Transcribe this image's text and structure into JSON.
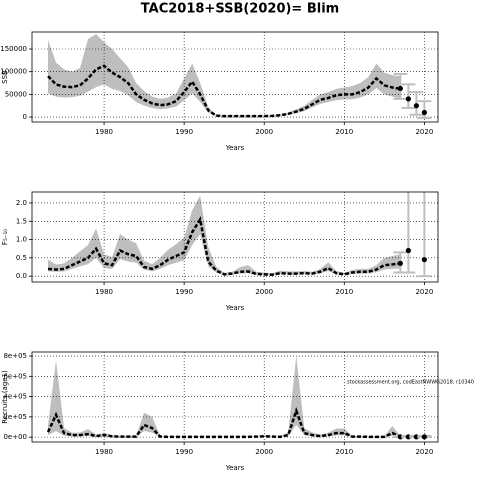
{
  "title": "TAC2018+SSB(2020)= Blim",
  "chart_data": [
    {
      "type": "line",
      "ylabel": "SSB",
      "xlabel": "Years",
      "grid": true,
      "color": "#000000",
      "band_color": "#bebebe",
      "forecast_color": "#bebebe",
      "xlim": [
        1971,
        2021.7
      ],
      "xticks": [
        1980,
        1990,
        2000,
        2010,
        2020
      ],
      "ylim": [
        -11000,
        187500
      ],
      "yticks": [
        0,
        50000,
        100000,
        150000
      ],
      "x": [
        1973,
        1974,
        1975,
        1976,
        1977,
        1978,
        1979,
        1980,
        1981,
        1982,
        1983,
        1984,
        1985,
        1986,
        1987,
        1988,
        1989,
        1990,
        1991,
        1992,
        1993,
        1994,
        1995,
        1996,
        1997,
        1998,
        1999,
        2000,
        2001,
        2002,
        2003,
        2004,
        2005,
        2006,
        2007,
        2008,
        2009,
        2010,
        2011,
        2012,
        2013,
        2014,
        2015,
        2016,
        2017
      ],
      "values": [
        90000,
        72000,
        67000,
        66000,
        70000,
        85000,
        105000,
        113000,
        98000,
        88000,
        75000,
        50000,
        38000,
        30000,
        26000,
        28000,
        35000,
        55000,
        78000,
        50000,
        15000,
        3000,
        2000,
        2000,
        2000,
        2000,
        2000,
        2000,
        2500,
        4000,
        7000,
        12000,
        18000,
        28000,
        38000,
        42000,
        48000,
        50000,
        50000,
        55000,
        65000,
        85000,
        70000,
        65000,
        62000
      ],
      "low": [
        52000,
        45000,
        43000,
        44000,
        47000,
        56000,
        66000,
        72000,
        62000,
        57000,
        48000,
        33000,
        25000,
        20000,
        17000,
        19000,
        23000,
        37000,
        52000,
        33000,
        10000,
        2000,
        1300,
        1300,
        1300,
        1300,
        1300,
        1300,
        1700,
        2800,
        5000,
        8500,
        13000,
        21000,
        29000,
        33000,
        37000,
        39000,
        39000,
        43000,
        50000,
        64000,
        50000,
        45000,
        40000
      ],
      "high": [
        170000,
        120000,
        105000,
        100000,
        108000,
        172000,
        183000,
        165000,
        150000,
        130000,
        110000,
        75000,
        57000,
        45000,
        40000,
        43000,
        52000,
        85000,
        118000,
        75000,
        22000,
        4500,
        3000,
        3000,
        3000,
        3000,
        3000,
        3000,
        3700,
        5700,
        10000,
        17000,
        25000,
        38000,
        50000,
        55000,
        62000,
        65000,
        68000,
        75000,
        88000,
        118000,
        98000,
        92000,
        90000
      ],
      "forecast_x": [
        2017,
        2018,
        2019,
        2020
      ],
      "forecast_values": [
        63000,
        40000,
        25000,
        10000
      ],
      "forecast_low": [
        40000,
        20000,
        5000,
        -2000
      ],
      "forecast_high": [
        95000,
        72000,
        55000,
        35000
      ]
    },
    {
      "type": "line",
      "ylabel": "F₅₋₁₀",
      "xlabel": "Years",
      "grid": true,
      "color": "#000000",
      "band_color": "#bebebe",
      "forecast_color": "#bebebe",
      "xlim": [
        1971,
        2021.7
      ],
      "xticks": [
        1980,
        1990,
        2000,
        2010,
        2020
      ],
      "ylim": [
        -0.16,
        2.3
      ],
      "yticks": [
        {
          "value": 0,
          "label": "0.0"
        },
        0.5,
        {
          "value": 1,
          "label": "1.0"
        },
        1.5,
        {
          "value": 2,
          "label": "2.0"
        }
      ],
      "x": [
        1973,
        1974,
        1975,
        1976,
        1977,
        1978,
        1979,
        1980,
        1981,
        1982,
        1983,
        1984,
        1985,
        1986,
        1987,
        1988,
        1989,
        1990,
        1991,
        1992,
        1993,
        1994,
        1995,
        1996,
        1997,
        1998,
        1999,
        2000,
        2001,
        2002,
        2003,
        2004,
        2005,
        2006,
        2007,
        2008,
        2009,
        2010,
        2011,
        2012,
        2013,
        2014,
        2015,
        2016,
        2017
      ],
      "values": [
        0.2,
        0.18,
        0.2,
        0.3,
        0.4,
        0.5,
        0.75,
        0.35,
        0.3,
        0.7,
        0.6,
        0.55,
        0.25,
        0.2,
        0.3,
        0.45,
        0.55,
        0.65,
        1.2,
        1.55,
        0.4,
        0.15,
        0.05,
        0.07,
        0.12,
        0.13,
        0.06,
        0.05,
        0.04,
        0.08,
        0.07,
        0.07,
        0.08,
        0.07,
        0.12,
        0.22,
        0.08,
        0.05,
        0.1,
        0.12,
        0.12,
        0.18,
        0.3,
        0.32,
        0.35
      ],
      "low": [
        0.13,
        0.12,
        0.13,
        0.2,
        0.27,
        0.33,
        0.5,
        0.22,
        0.2,
        0.47,
        0.4,
        0.37,
        0.17,
        0.13,
        0.2,
        0.3,
        0.37,
        0.43,
        0.85,
        1.15,
        0.27,
        0.1,
        0.03,
        0.04,
        0.07,
        0.08,
        0.03,
        0.03,
        0.02,
        0.05,
        0.04,
        0.04,
        0.05,
        0.04,
        0.08,
        0.14,
        0.05,
        0.03,
        0.06,
        0.07,
        0.07,
        0.11,
        0.18,
        0.2,
        0.21
      ],
      "high": [
        0.45,
        0.32,
        0.35,
        0.5,
        0.68,
        0.85,
        1.3,
        0.6,
        0.52,
        1.15,
        1.0,
        0.9,
        0.42,
        0.33,
        0.5,
        0.72,
        0.88,
        1.05,
        1.8,
        2.2,
        0.8,
        0.26,
        0.09,
        0.12,
        0.25,
        0.3,
        0.12,
        0.1,
        0.08,
        0.15,
        0.13,
        0.13,
        0.14,
        0.12,
        0.2,
        0.38,
        0.14,
        0.09,
        0.17,
        0.2,
        0.2,
        0.3,
        0.5,
        0.55,
        0.6
      ],
      "forecast_x": [
        2017,
        2018,
        2020
      ],
      "forecast_values": [
        0.35,
        0.7,
        0.45
      ],
      "forecast_low": [
        0.1,
        0.1,
        0
      ],
      "forecast_high": [
        0.65,
        2.4,
        2.4
      ]
    },
    {
      "type": "line",
      "ylabel": "Recruits (age1)",
      "xlabel": "Years",
      "grid": true,
      "color": "#000000",
      "band_color": "#bebebe",
      "forecast_color": "#bebebe",
      "annotation": "stockassessment.org, codEastNWWG2018, r10340",
      "xlim": [
        1971,
        2021.7
      ],
      "xticks": [
        1980,
        1990,
        2000,
        2010,
        2020
      ],
      "ylim": [
        -48000,
        840000
      ],
      "yticks": [
        {
          "value": 0,
          "label": "0e+00"
        },
        {
          "value": 200000,
          "label": "2e+05"
        },
        {
          "value": 400000,
          "label": "4e+05"
        },
        {
          "value": 600000,
          "label": "6e+05"
        },
        {
          "value": 800000,
          "label": "8e+05"
        }
      ],
      "x": [
        1973,
        1974,
        1975,
        1976,
        1977,
        1978,
        1979,
        1980,
        1981,
        1982,
        1983,
        1984,
        1985,
        1986,
        1987,
        1988,
        1989,
        1990,
        1991,
        1992,
        1993,
        1994,
        1995,
        1996,
        1997,
        1998,
        1999,
        2000,
        2001,
        2002,
        2003,
        2004,
        2005,
        2006,
        2007,
        2008,
        2009,
        2010,
        2011,
        2012,
        2013,
        2014,
        2015,
        2016,
        2017
      ],
      "values": [
        50000,
        220000,
        40000,
        20000,
        20000,
        30000,
        10000,
        20000,
        8000,
        5000,
        5000,
        5000,
        120000,
        90000,
        5000,
        3000,
        3000,
        3000,
        3000,
        3000,
        3000,
        3000,
        2000,
        2000,
        2000,
        3000,
        5000,
        8000,
        5000,
        3000,
        20000,
        260000,
        40000,
        20000,
        10000,
        20000,
        40000,
        40000,
        5000,
        5000,
        3000,
        3000,
        3000,
        40000,
        5000
      ],
      "low": [
        20000,
        60000,
        15000,
        8000,
        8000,
        12000,
        4000,
        8000,
        3000,
        2000,
        2000,
        2000,
        60000,
        45000,
        2000,
        1000,
        1000,
        1000,
        1000,
        1000,
        1000,
        1000,
        800,
        800,
        800,
        1000,
        2000,
        3000,
        2000,
        1000,
        8000,
        120000,
        18000,
        8000,
        4000,
        8000,
        18000,
        18000,
        2000,
        2000,
        1000,
        1000,
        1000,
        15000,
        1000
      ],
      "high": [
        120000,
        760000,
        90000,
        45000,
        45000,
        80000,
        25000,
        45000,
        18000,
        12000,
        12000,
        12000,
        240000,
        200000,
        12000,
        7000,
        7000,
        7000,
        7000,
        7000,
        7000,
        7000,
        5000,
        5000,
        5000,
        7000,
        12000,
        18000,
        12000,
        7000,
        50000,
        800000,
        90000,
        45000,
        25000,
        45000,
        85000,
        85000,
        12000,
        12000,
        7000,
        7000,
        7000,
        110000,
        12000
      ],
      "forecast_x": [
        2017,
        2018,
        2019,
        2020
      ],
      "forecast_values": [
        3000,
        3000,
        3000,
        3000
      ],
      "forecast_low": [
        1000,
        1000,
        1000,
        1000
      ],
      "forecast_high": [
        12000,
        12000,
        12000,
        12000
      ]
    }
  ]
}
